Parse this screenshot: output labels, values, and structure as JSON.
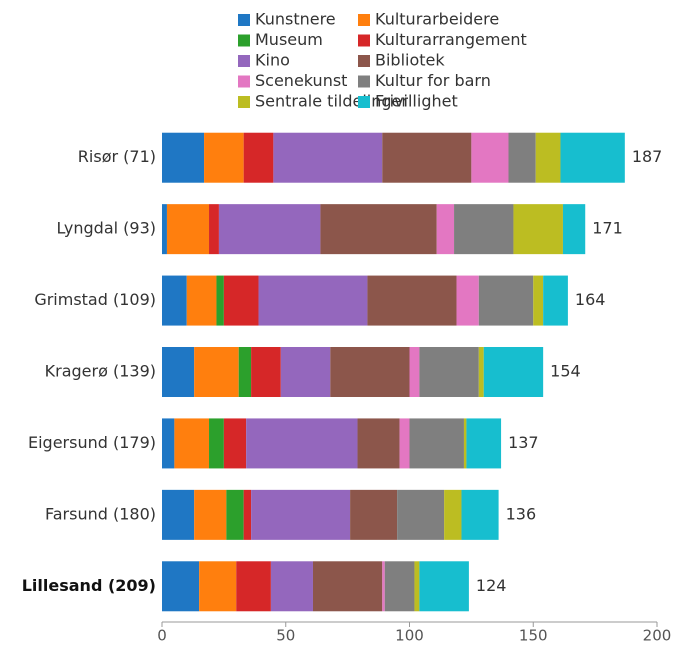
{
  "chart_data": {
    "type": "stacked_barh",
    "categories": [
      "Risør (71)",
      "Lyngdal (93)",
      "Grimstad (109)",
      "Kragerø (139)",
      "Eigersund (179)",
      "Farsund (180)",
      "Lillesand (209)"
    ],
    "highlight_index": 6,
    "series": [
      {
        "name": "Kunstnere",
        "color": "#1f77c4",
        "values": [
          17,
          2,
          10,
          13,
          5,
          13,
          15
        ]
      },
      {
        "name": "Kulturarbeidere",
        "color": "#ff7f0e",
        "values": [
          16,
          17,
          12,
          18,
          14,
          13,
          15
        ]
      },
      {
        "name": "Museum",
        "color": "#2ca02c",
        "values": [
          0,
          0,
          3,
          5,
          6,
          7,
          0
        ]
      },
      {
        "name": "Kulturarrangement",
        "color": "#d62728",
        "values": [
          12,
          4,
          14,
          12,
          9,
          3,
          14
        ]
      },
      {
        "name": "Kino",
        "color": "#9467bd",
        "values": [
          44,
          41,
          44,
          20,
          45,
          40,
          17
        ]
      },
      {
        "name": "Bibliotek",
        "color": "#8c564b",
        "values": [
          36,
          47,
          36,
          32,
          17,
          19,
          28
        ]
      },
      {
        "name": "Scenekunst",
        "color": "#e377c2",
        "values": [
          15,
          7,
          9,
          4,
          4,
          0,
          1
        ]
      },
      {
        "name": "Kultur for barn",
        "color": "#7f7f7f",
        "values": [
          11,
          24,
          22,
          24,
          22,
          19,
          12
        ]
      },
      {
        "name": "Sentrale tildelinger",
        "color": "#bcbd22",
        "values": [
          10,
          20,
          4,
          2,
          1,
          7,
          2
        ]
      },
      {
        "name": "Frivillighet",
        "color": "#17becf",
        "values": [
          26,
          9,
          10,
          24,
          14,
          15,
          20
        ]
      }
    ],
    "totals": [
      187,
      171,
      164,
      154,
      137,
      136,
      124
    ],
    "xlim": [
      0,
      200
    ],
    "xticks": [
      0,
      50,
      100,
      150,
      200
    ]
  }
}
